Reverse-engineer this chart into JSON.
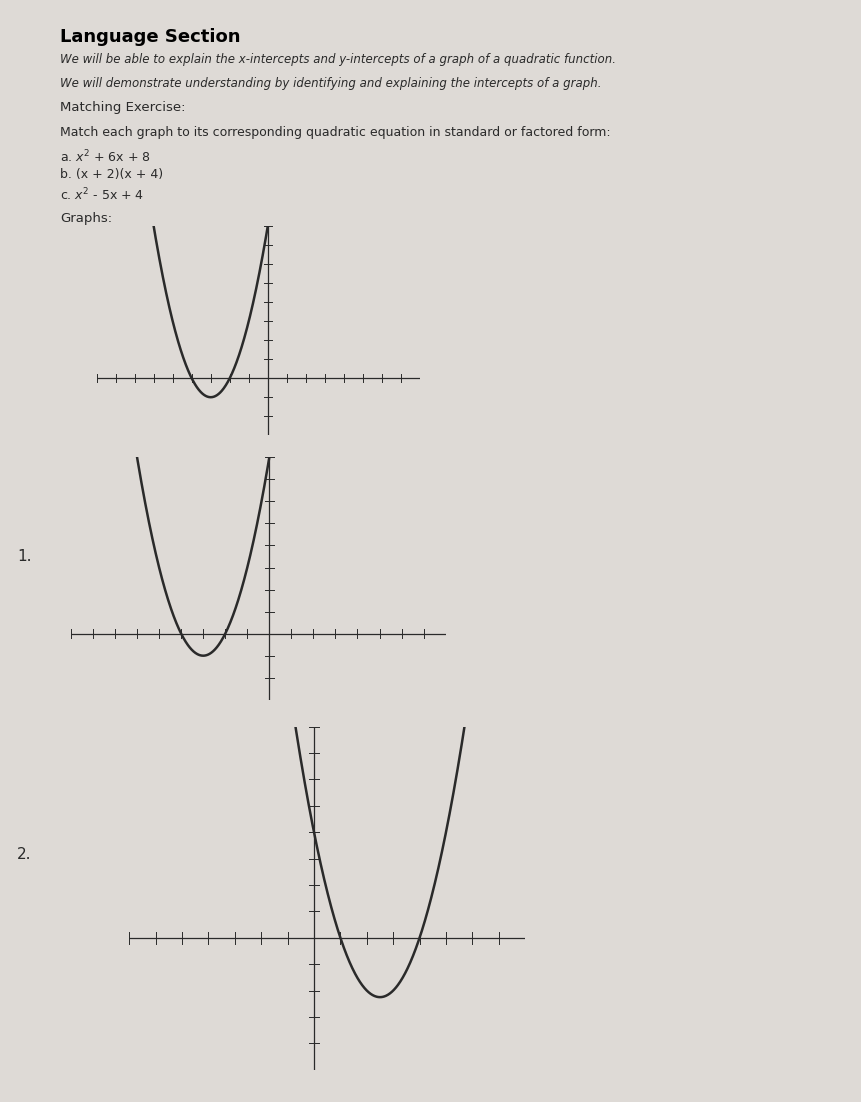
{
  "title": "Language Section",
  "line1": "We will be able to explain the x-intercepts and y-intercepts of a graph of a quadratic function.",
  "line2": "We will demonstrate understanding by identifying and explaining the intercepts of a graph.",
  "section": "Matching Exercise:",
  "instructions": "Match each graph to its corresponding quadratic equation in standard or factored form:",
  "opt_a": "a. $x^2$ + 6x + 8",
  "opt_b": "b. (x + 2)(x + 4)",
  "opt_c": "c. $x^2$ - 5x + 4",
  "graphs_label": "Graphs:",
  "graph1_label": "1.",
  "graph2_label": "2.",
  "paper_color": "#dedad6",
  "curve_color": "#2a2a2a",
  "axis_color": "#2a2a2a",
  "tick_color": "#2a2a2a",
  "graph0": {
    "func": "x2+6x+8",
    "xmin": -9,
    "xmax": 8,
    "ymin": -3,
    "ymax": 8,
    "yaxis_at": 0,
    "xaxis_at": 0
  },
  "graph1": {
    "func": "x2+6x+8",
    "xmin": -9,
    "xmax": 8,
    "ymin": -3,
    "ymax": 8,
    "yaxis_at": 0,
    "xaxis_at": 0
  },
  "graph2": {
    "func": "x2-5x+4",
    "xmin": -7,
    "xmax": 8,
    "ymin": -5,
    "ymax": 8,
    "yaxis_at": 0,
    "xaxis_at": 0
  }
}
